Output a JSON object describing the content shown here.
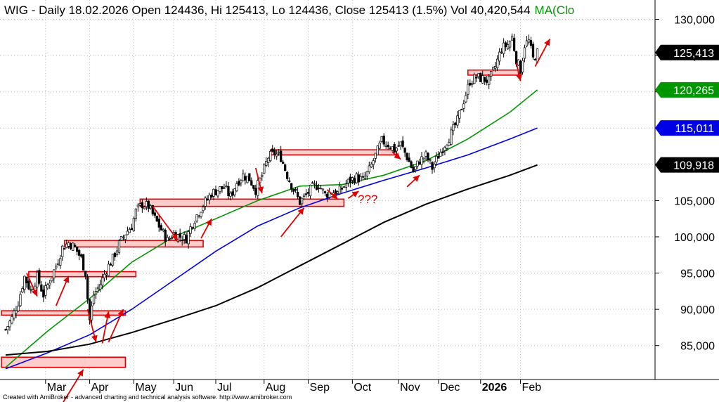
{
  "header": {
    "ticker": "WIG",
    "description": "WIG - Daily 18.02.2026 Open 124436, Hi 125413, Lo 124436, Close 125413 (1.5%) Vol 40,420,544",
    "ma_label": "MA(Clo"
  },
  "footer": {
    "credit": "Created with AmiBroker - advanced charting and technical analysis software. http://www.amibroker.com"
  },
  "colors": {
    "background": "#ffffff",
    "price": "#000000",
    "ma_fast": "#009600",
    "ma_mid": "#0000e6",
    "ma_slow": "#000000",
    "zone_fill": "#ffcccc",
    "zone_stroke": "#e00000",
    "arrow": "#e00000"
  },
  "badges": [
    {
      "text": "125,413",
      "value": 125413,
      "bg": "#000000"
    },
    {
      "text": "120,265",
      "value": 120265,
      "bg": "#009600"
    },
    {
      "text": "115,011",
      "value": 115011,
      "bg": "#0000e6"
    },
    {
      "text": "109,918",
      "value": 109918,
      "bg": "#000000"
    }
  ],
  "annotation": {
    "text": "???"
  },
  "chart_data": {
    "type": "line",
    "title": "WIG - Daily 18.02.2026",
    "ylim": [
      81000,
      131500
    ],
    "y_ticks": [
      85000,
      90000,
      95000,
      100000,
      105000,
      110000,
      115000,
      120000,
      125000,
      130000
    ],
    "y_tick_labels": [
      "85,000",
      "90,000",
      "95,000",
      "100,000",
      "105,000",
      "110,000",
      "115,000",
      "120,000",
      "125,000",
      "130,000"
    ],
    "x_ticks": [
      {
        "label": "Mar",
        "day": 19
      },
      {
        "label": "Apr",
        "day": 40
      },
      {
        "label": "May",
        "day": 61
      },
      {
        "label": "Jun",
        "day": 80
      },
      {
        "label": "Jul",
        "day": 100
      },
      {
        "label": "Aug",
        "day": 123
      },
      {
        "label": "Sep",
        "day": 144
      },
      {
        "label": "Oct",
        "day": 165
      },
      {
        "label": "Nov",
        "day": 187
      },
      {
        "label": "Dec",
        "day": 206
      },
      {
        "label": "2026",
        "day": 226,
        "bold": true
      },
      {
        "label": "Feb",
        "day": 245
      }
    ],
    "price_close": [
      [
        0,
        87200
      ],
      [
        3,
        88800
      ],
      [
        6,
        91000
      ],
      [
        9,
        94500
      ],
      [
        12,
        92500
      ],
      [
        15,
        94500
      ],
      [
        18,
        92000
      ],
      [
        21,
        94000
      ],
      [
        24,
        96000
      ],
      [
        27,
        98500
      ],
      [
        30,
        99200
      ],
      [
        33,
        98500
      ],
      [
        36,
        97000
      ],
      [
        38,
        95000
      ],
      [
        39,
        91500
      ],
      [
        40,
        88500
      ],
      [
        42,
        92000
      ],
      [
        45,
        93500
      ],
      [
        48,
        95500
      ],
      [
        51,
        97000
      ],
      [
        54,
        99000
      ],
      [
        57,
        100500
      ],
      [
        60,
        101500
      ],
      [
        62,
        103500
      ],
      [
        65,
        104500
      ],
      [
        68,
        104200
      ],
      [
        71,
        102500
      ],
      [
        74,
        101000
      ],
      [
        77,
        99500
      ],
      [
        80,
        100500
      ],
      [
        83,
        100000
      ],
      [
        86,
        99800
      ],
      [
        89,
        102000
      ],
      [
        92,
        103500
      ],
      [
        95,
        104800
      ],
      [
        98,
        106000
      ],
      [
        101,
        106500
      ],
      [
        104,
        106800
      ],
      [
        107,
        105500
      ],
      [
        110,
        107500
      ],
      [
        113,
        108500
      ],
      [
        116,
        108000
      ],
      [
        119,
        106500
      ],
      [
        122,
        108500
      ],
      [
        125,
        111000
      ],
      [
        128,
        111500
      ],
      [
        131,
        111000
      ],
      [
        134,
        108500
      ],
      [
        137,
        106500
      ],
      [
        140,
        104800
      ],
      [
        143,
        105800
      ],
      [
        146,
        106800
      ],
      [
        149,
        107200
      ],
      [
        152,
        105800
      ],
      [
        155,
        106300
      ],
      [
        158,
        106000
      ],
      [
        161,
        107000
      ],
      [
        164,
        107800
      ],
      [
        167,
        108200
      ],
      [
        170,
        107800
      ],
      [
        173,
        109200
      ],
      [
        176,
        111200
      ],
      [
        179,
        113200
      ],
      [
        182,
        112800
      ],
      [
        185,
        112000
      ],
      [
        188,
        112800
      ],
      [
        191,
        111000
      ],
      [
        194,
        109000
      ],
      [
        197,
        110500
      ],
      [
        200,
        111200
      ],
      [
        203,
        109500
      ],
      [
        206,
        111200
      ],
      [
        209,
        112800
      ],
      [
        212,
        114200
      ],
      [
        215,
        116000
      ],
      [
        218,
        118800
      ],
      [
        221,
        121500
      ],
      [
        224,
        122000
      ],
      [
        227,
        121800
      ],
      [
        230,
        121500
      ],
      [
        233,
        123500
      ],
      [
        236,
        126000
      ],
      [
        239,
        126500
      ],
      [
        241,
        127500
      ],
      [
        243,
        124500
      ],
      [
        245,
        123000
      ],
      [
        247,
        126500
      ],
      [
        249,
        127000
      ],
      [
        251,
        124500
      ],
      [
        253,
        125413
      ]
    ],
    "series": [
      {
        "name": "MA fast",
        "values": [
          [
            0,
            82000
          ],
          [
            20,
            87000
          ],
          [
            40,
            91500
          ],
          [
            60,
            96500
          ],
          [
            80,
            100000
          ],
          [
            100,
            102500
          ],
          [
            120,
            105000
          ],
          [
            140,
            107000
          ],
          [
            160,
            107200
          ],
          [
            180,
            108500
          ],
          [
            200,
            110500
          ],
          [
            220,
            113500
          ],
          [
            240,
            117200
          ],
          [
            253,
            120265
          ]
        ]
      },
      {
        "name": "MA mid",
        "values": [
          [
            0,
            81800
          ],
          [
            20,
            84000
          ],
          [
            40,
            86500
          ],
          [
            60,
            90000
          ],
          [
            80,
            94000
          ],
          [
            100,
            98000
          ],
          [
            120,
            101500
          ],
          [
            140,
            104000
          ],
          [
            160,
            106000
          ],
          [
            180,
            107800
          ],
          [
            200,
            109500
          ],
          [
            220,
            111300
          ],
          [
            240,
            113500
          ],
          [
            253,
            115011
          ]
        ]
      },
      {
        "name": "MA slow",
        "values": [
          [
            0,
            83700
          ],
          [
            20,
            84200
          ],
          [
            40,
            85200
          ],
          [
            60,
            86800
          ],
          [
            80,
            88600
          ],
          [
            100,
            90500
          ],
          [
            120,
            93000
          ],
          [
            140,
            96000
          ],
          [
            160,
            99000
          ],
          [
            180,
            102000
          ],
          [
            200,
            104500
          ],
          [
            220,
            106600
          ],
          [
            240,
            108500
          ],
          [
            253,
            109918
          ]
        ]
      }
    ],
    "zones": [
      {
        "day_start": -2,
        "day_end": 57,
        "low": 82000,
        "high": 83400
      },
      {
        "day_start": -2,
        "day_end": 57,
        "low": 89200,
        "high": 89800
      },
      {
        "day_start": 11,
        "day_end": 62,
        "low": 94500,
        "high": 95200
      },
      {
        "day_start": 28,
        "day_end": 94,
        "low": 98600,
        "high": 99500
      },
      {
        "day_start": 64,
        "day_end": 161,
        "low": 104200,
        "high": 105200
      },
      {
        "day_start": 126,
        "day_end": 186,
        "low": 111300,
        "high": 112000
      },
      {
        "day_start": 220,
        "day_end": 244,
        "low": 122300,
        "high": 123000
      }
    ],
    "arrows": [
      {
        "from": [
          27,
          77000
        ],
        "to": [
          37,
          81700
        ]
      },
      {
        "from": [
          10,
          95000
        ],
        "to": [
          15,
          91800
        ]
      },
      {
        "from": [
          24,
          90500
        ],
        "to": [
          30,
          94600
        ]
      },
      {
        "from": [
          39,
          90000
        ],
        "to": [
          43,
          85500
        ]
      },
      {
        "from": [
          46,
          85300
        ],
        "to": [
          49,
          89700
        ]
      },
      {
        "from": [
          49,
          85500
        ],
        "to": [
          56,
          90000
        ]
      },
      {
        "from": [
          70,
          104200
        ],
        "to": [
          82,
          99500
        ]
      },
      {
        "from": [
          93,
          99800
        ],
        "to": [
          98,
          102500
        ]
      },
      {
        "from": [
          131,
          100000
        ],
        "to": [
          142,
          104000
        ]
      },
      {
        "from": [
          119,
          109500
        ],
        "to": [
          122,
          106000
        ]
      },
      {
        "from": [
          153,
          106500
        ],
        "to": [
          158,
          105200
        ]
      },
      {
        "from": [
          163,
          105300
        ],
        "to": [
          168,
          106300
        ]
      },
      {
        "from": [
          184,
          111700
        ],
        "to": [
          188,
          110700
        ]
      },
      {
        "from": [
          191,
          106900
        ],
        "to": [
          197,
          108500
        ]
      },
      {
        "from": [
          243,
          124000
        ],
        "to": [
          245,
          121500
        ]
      },
      {
        "from": [
          252,
          123500
        ],
        "to": [
          259,
          127300
        ]
      }
    ]
  }
}
